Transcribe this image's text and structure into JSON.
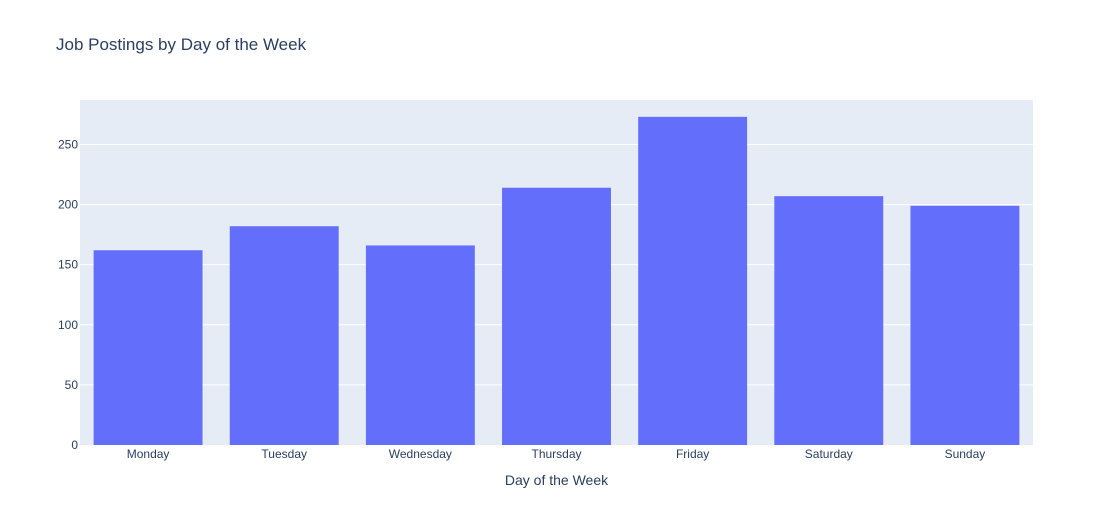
{
  "chart_data": {
    "type": "bar",
    "title": "Job Postings by Day of the Week",
    "xlabel": "Day of the Week",
    "ylabel": "",
    "categories": [
      "Monday",
      "Tuesday",
      "Wednesday",
      "Thursday",
      "Friday",
      "Saturday",
      "Sunday"
    ],
    "values": [
      162,
      182,
      166,
      214,
      273,
      207,
      199
    ],
    "ylim": [
      0,
      287
    ],
    "yticks": [
      0,
      50,
      100,
      150,
      200,
      250
    ],
    "ytick_labels": [
      "0",
      "50",
      "100",
      "150",
      "200",
      "250"
    ],
    "grid": true,
    "legend": "none",
    "colors": {
      "bar": "#636efa",
      "plot_background": "#e5ecf6",
      "gridline": "#ffffff",
      "text": "#2a3f5f"
    }
  }
}
